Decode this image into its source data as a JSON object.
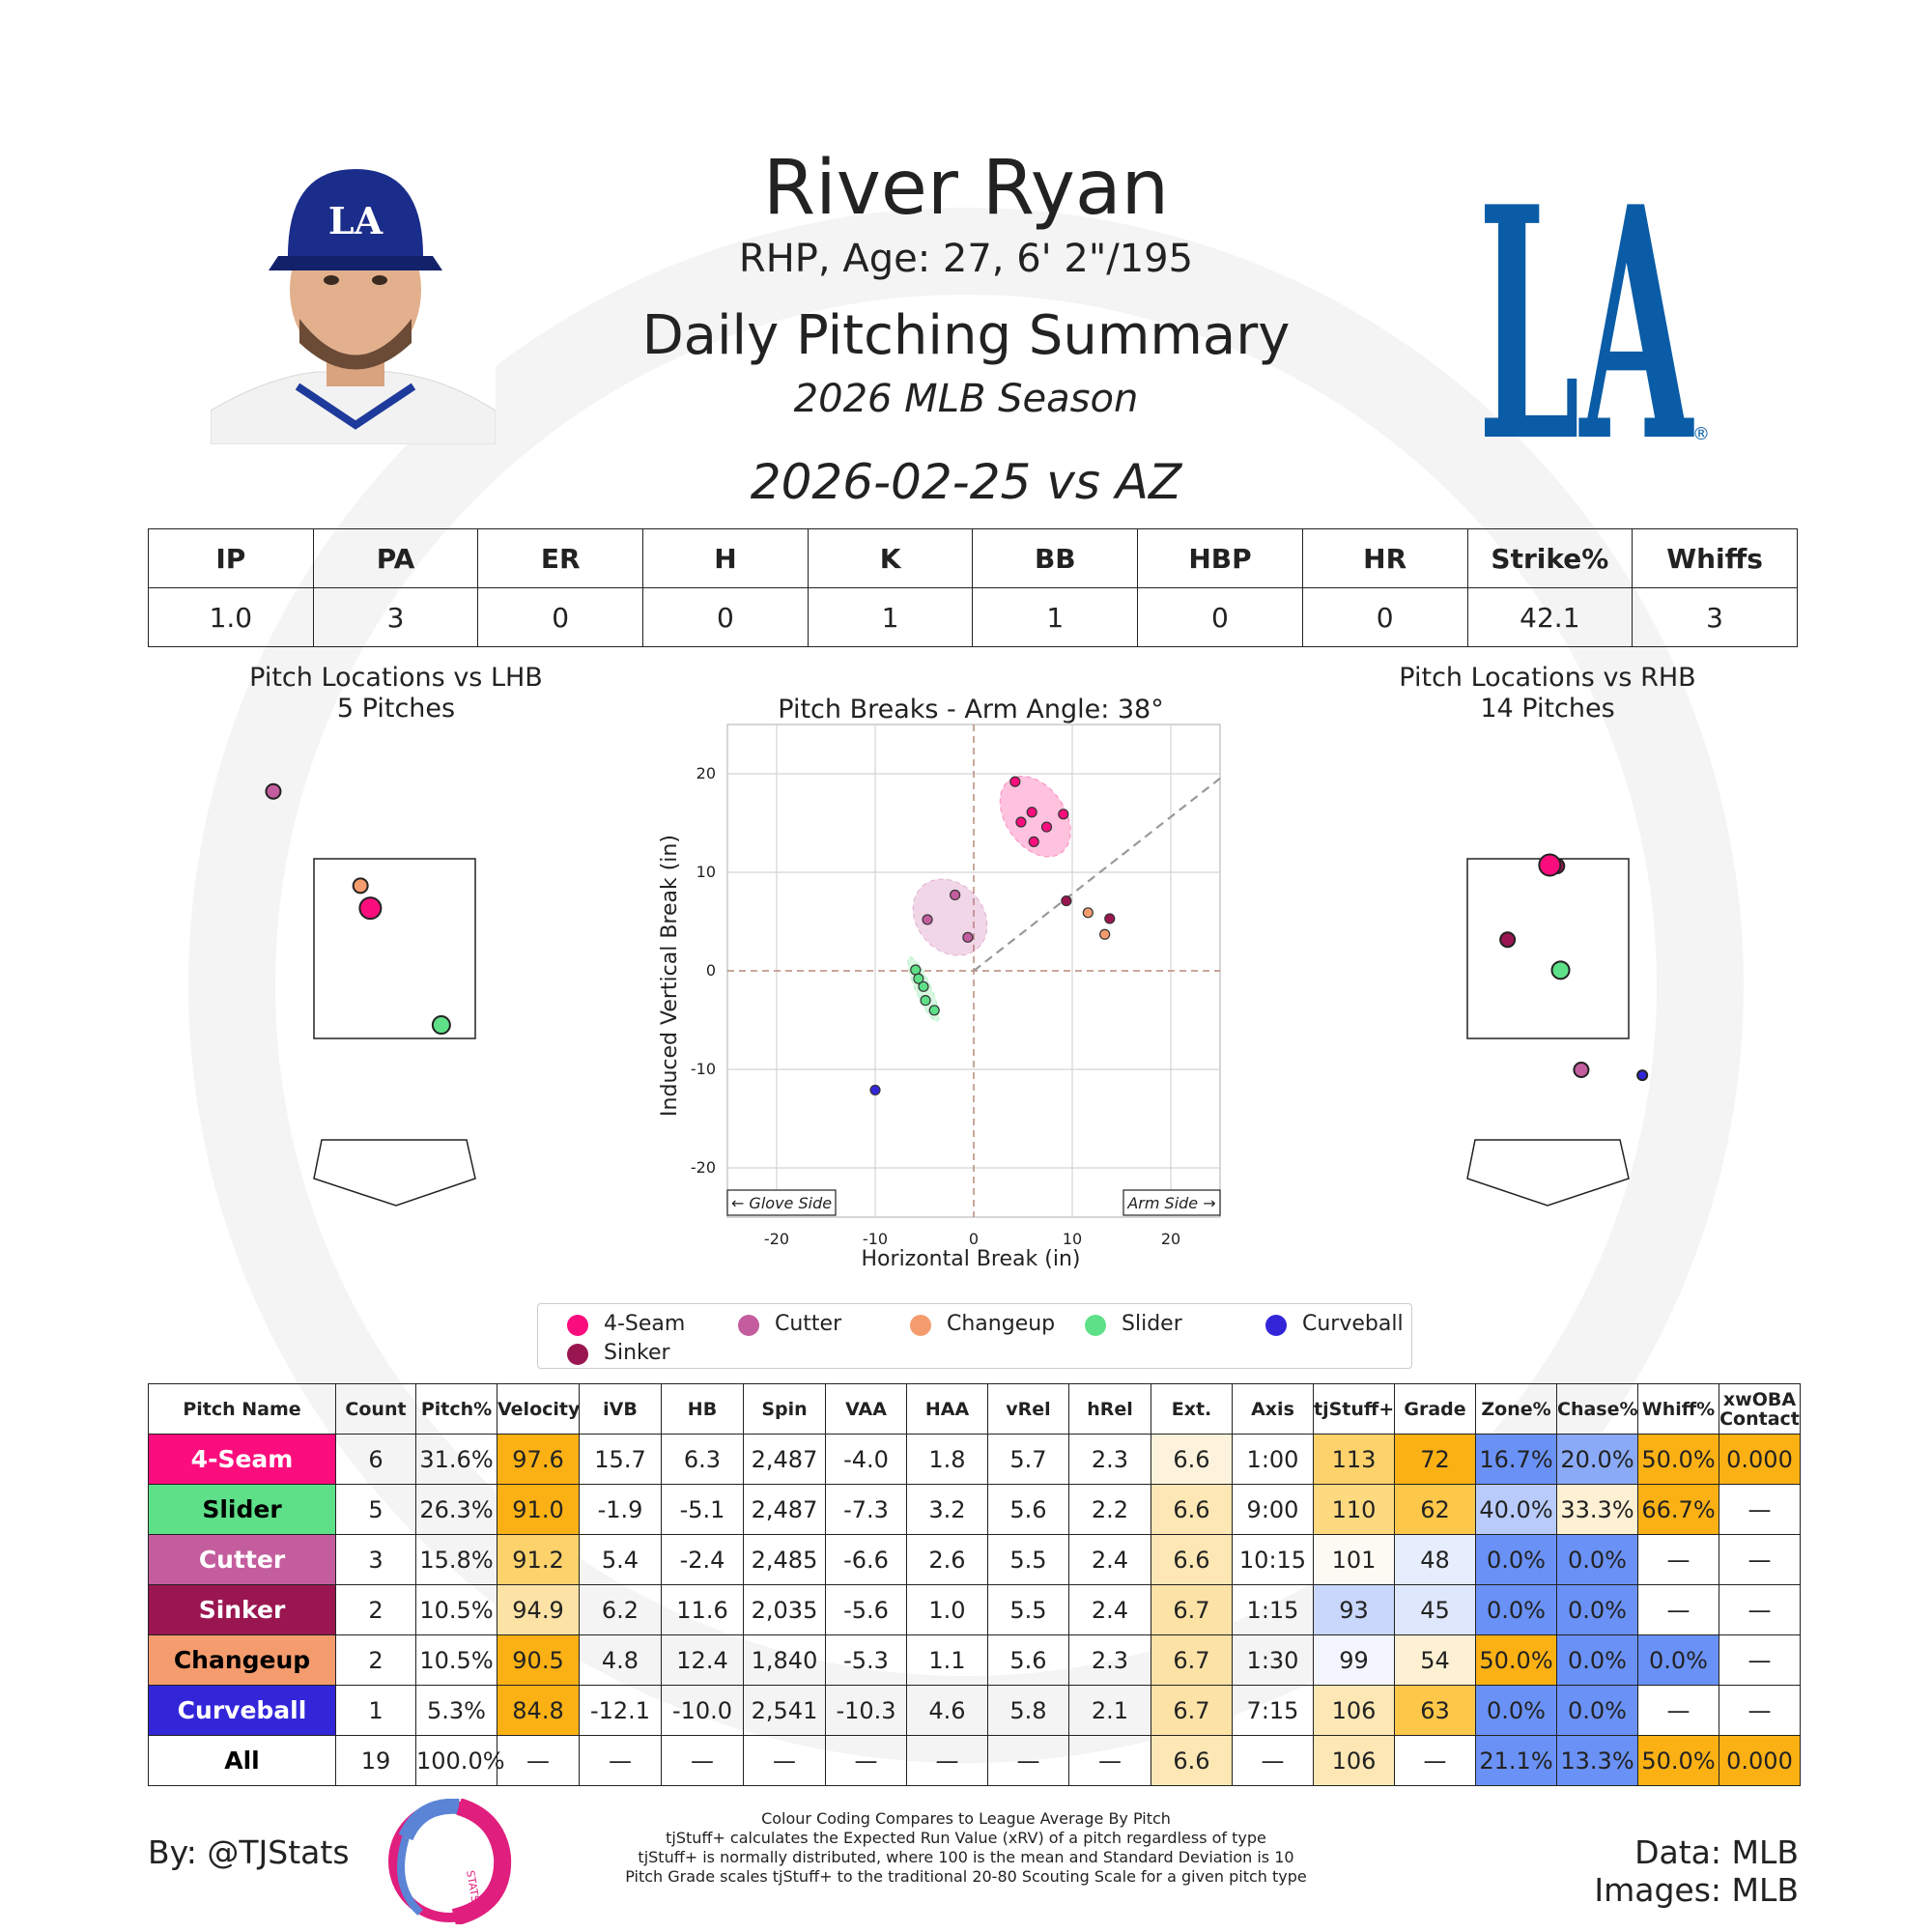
{
  "header": {
    "player_name": "River Ryan",
    "player_info": "RHP, Age: 27, 6' 2\"/195",
    "title": "Daily Pitching Summary",
    "season": "2026 MLB Season",
    "game_line": "2026-02-25 vs AZ",
    "team_logo_text": "LA"
  },
  "line_stats": {
    "headers": [
      "IP",
      "PA",
      "ER",
      "H",
      "K",
      "BB",
      "HBP",
      "HR",
      "Strike%",
      "Whiffs"
    ],
    "values": [
      "1.0",
      "3",
      "0",
      "0",
      "1",
      "1",
      "0",
      "0",
      "42.1",
      "3"
    ]
  },
  "colors": {
    "4-Seam": "#fc0d7d",
    "Cutter": "#c45d9e",
    "Changeup": "#f59c6e",
    "Slider": "#5ee089",
    "Curveball": "#3326d9",
    "Sinker": "#9a1650",
    "grade_high": "#fbb114",
    "grade_low": "#6a91f5"
  },
  "lhb_panel": {
    "title": "Pitch Locations vs LHB",
    "subtitle": "5 Pitches",
    "pitches": [
      {
        "type": "Cutter",
        "x": -1.35,
        "z": 4.25
      },
      {
        "type": "Changeup",
        "x": -0.38,
        "z": 3.2
      },
      {
        "type": "4-Seam",
        "x": -0.27,
        "z": 2.95
      },
      {
        "type": "Slider",
        "x": 0.52,
        "z": 1.65
      }
    ]
  },
  "rhb_panel": {
    "title": "Pitch Locations vs RHB",
    "subtitle": "14 Pitches",
    "pitches": [
      {
        "type": "Sinker",
        "x": 0.1,
        "z": 3.42
      },
      {
        "type": "4-Seam",
        "x": 0.02,
        "z": 3.43
      },
      {
        "type": "Sinker",
        "x": -0.45,
        "z": 2.6
      },
      {
        "type": "Slider",
        "x": 0.14,
        "z": 2.26
      },
      {
        "type": "Cutter",
        "x": 0.37,
        "z": 1.15
      },
      {
        "type": "Curveball",
        "x": 1.05,
        "z": 1.09
      }
    ]
  },
  "chart_data": {
    "type": "scatter",
    "title": "Pitch Breaks - Arm Angle: 38°",
    "xlabel": "Horizontal Break (in)",
    "ylabel": "Induced Vertical Break (in)",
    "xlim": [
      -25,
      25
    ],
    "ylim": [
      -25,
      25
    ],
    "xticks": [
      "-20",
      "-10",
      "0",
      "10",
      "20"
    ],
    "yticks": [
      "20",
      "10",
      "0",
      "-10",
      "-20"
    ],
    "grid": true,
    "annotations": {
      "left": "← Glove Side",
      "right": "Arm Side →"
    },
    "arm_angle_deg": 38,
    "series": [
      {
        "name": "4-Seam",
        "points": [
          [
            4.2,
            19.2
          ],
          [
            4.8,
            15.1
          ],
          [
            5.9,
            16.1
          ],
          [
            7.4,
            14.6
          ],
          [
            9.1,
            15.9
          ],
          [
            6.1,
            13.1
          ]
        ]
      },
      {
        "name": "Cutter",
        "points": [
          [
            -1.9,
            7.7
          ],
          [
            -4.7,
            5.2
          ],
          [
            -0.6,
            3.4
          ]
        ]
      },
      {
        "name": "Changeup",
        "points": [
          [
            11.6,
            5.9
          ],
          [
            13.3,
            3.7
          ]
        ]
      },
      {
        "name": "Slider",
        "points": [
          [
            -5.9,
            0.1
          ],
          [
            -5.6,
            -0.8
          ],
          [
            -5.1,
            -1.6
          ],
          [
            -4.9,
            -3.0
          ],
          [
            -4.0,
            -4.0
          ]
        ]
      },
      {
        "name": "Curveball",
        "points": [
          [
            -10.0,
            -12.1
          ]
        ]
      },
      {
        "name": "Sinker",
        "points": [
          [
            9.4,
            7.1
          ],
          [
            13.8,
            5.3
          ]
        ]
      }
    ]
  },
  "legend": [
    "4-Seam",
    "Cutter",
    "Changeup",
    "Slider",
    "Curveball",
    "Sinker"
  ],
  "pitch_table": {
    "headers": [
      "Pitch Name",
      "Count",
      "Pitch%",
      "Velocity",
      "iVB",
      "HB",
      "Spin",
      "VAA",
      "HAA",
      "vRel",
      "hRel",
      "Ext.",
      "Axis",
      "tjStuff+",
      "Grade",
      "Zone%",
      "Chase%",
      "Whiff%",
      "xwOBA Contact"
    ],
    "rows": [
      {
        "name": "4-Seam",
        "cells": [
          "6",
          "31.6%",
          "97.6",
          "15.7",
          "6.3",
          "2,487",
          "-4.0",
          "1.8",
          "5.7",
          "2.3",
          "6.6",
          "1:00",
          "113",
          "72",
          "16.7%",
          "20.0%",
          "50.0%",
          "0.000"
        ]
      },
      {
        "name": "Slider",
        "cells": [
          "5",
          "26.3%",
          "91.0",
          "-1.9",
          "-5.1",
          "2,487",
          "-7.3",
          "3.2",
          "5.6",
          "2.2",
          "6.6",
          "9:00",
          "110",
          "62",
          "40.0%",
          "33.3%",
          "66.7%",
          "—"
        ]
      },
      {
        "name": "Cutter",
        "cells": [
          "3",
          "15.8%",
          "91.2",
          "5.4",
          "-2.4",
          "2,485",
          "-6.6",
          "2.6",
          "5.5",
          "2.4",
          "6.6",
          "10:15",
          "101",
          "48",
          "0.0%",
          "0.0%",
          "—",
          "—"
        ]
      },
      {
        "name": "Sinker",
        "cells": [
          "2",
          "10.5%",
          "94.9",
          "6.2",
          "11.6",
          "2,035",
          "-5.6",
          "1.0",
          "5.5",
          "2.4",
          "6.7",
          "1:15",
          "93",
          "45",
          "0.0%",
          "0.0%",
          "—",
          "—"
        ]
      },
      {
        "name": "Changeup",
        "cells": [
          "2",
          "10.5%",
          "90.5",
          "4.8",
          "12.4",
          "1,840",
          "-5.3",
          "1.1",
          "5.6",
          "2.3",
          "6.7",
          "1:30",
          "99",
          "54",
          "50.0%",
          "0.0%",
          "0.0%",
          "—"
        ]
      },
      {
        "name": "Curveball",
        "cells": [
          "1",
          "5.3%",
          "84.8",
          "-12.1",
          "-10.0",
          "2,541",
          "-10.3",
          "4.6",
          "5.8",
          "2.1",
          "6.7",
          "7:15",
          "106",
          "63",
          "0.0%",
          "0.0%",
          "—",
          "—"
        ]
      },
      {
        "name": "All",
        "cells": [
          "19",
          "100.0%",
          "—",
          "—",
          "—",
          "—",
          "—",
          "—",
          "—",
          "—",
          "6.6",
          "—",
          "106",
          "—",
          "21.1%",
          "13.3%",
          "50.0%",
          "0.000"
        ]
      }
    ],
    "cell_colors": [
      {
        "row": 0,
        "col": 3,
        "color": "#fbb114"
      },
      {
        "row": 0,
        "col": 11,
        "color": "#fdf3dc"
      },
      {
        "row": 0,
        "col": 13,
        "color": "#fdd26b"
      },
      {
        "row": 0,
        "col": 14,
        "color": "#fbb114"
      },
      {
        "row": 0,
        "col": 15,
        "color": "#6a91f5"
      },
      {
        "row": 0,
        "col": 16,
        "color": "#8aa9f7"
      },
      {
        "row": 0,
        "col": 17,
        "color": "#fbb114"
      },
      {
        "row": 0,
        "col": 18,
        "color": "#fbb114"
      },
      {
        "row": 1,
        "col": 3,
        "color": "#fbb114"
      },
      {
        "row": 1,
        "col": 11,
        "color": "#fde7b4"
      },
      {
        "row": 1,
        "col": 13,
        "color": "#fdd980"
      },
      {
        "row": 1,
        "col": 14,
        "color": "#fdc74a"
      },
      {
        "row": 1,
        "col": 15,
        "color": "#b8cbfa"
      },
      {
        "row": 1,
        "col": 16,
        "color": "#fdf0d3"
      },
      {
        "row": 1,
        "col": 17,
        "color": "#fbb114"
      },
      {
        "row": 2,
        "col": 3,
        "color": "#fdd26b"
      },
      {
        "row": 2,
        "col": 11,
        "color": "#fde7b4"
      },
      {
        "row": 2,
        "col": 13,
        "color": "#fdfaf3"
      },
      {
        "row": 2,
        "col": 14,
        "color": "#e6edfd"
      },
      {
        "row": 2,
        "col": 15,
        "color": "#6a91f5"
      },
      {
        "row": 2,
        "col": 16,
        "color": "#6a91f5"
      },
      {
        "row": 3,
        "col": 3,
        "color": "#fde2a6"
      },
      {
        "row": 3,
        "col": 11,
        "color": "#fde2a6"
      },
      {
        "row": 3,
        "col": 13,
        "color": "#c8d7fb"
      },
      {
        "row": 3,
        "col": 14,
        "color": "#dfe7fc"
      },
      {
        "row": 3,
        "col": 15,
        "color": "#6a91f5"
      },
      {
        "row": 3,
        "col": 16,
        "color": "#6a91f5"
      },
      {
        "row": 4,
        "col": 3,
        "color": "#fbb114"
      },
      {
        "row": 4,
        "col": 11,
        "color": "#fde2a6"
      },
      {
        "row": 4,
        "col": 13,
        "color": "#f3f6fe"
      },
      {
        "row": 4,
        "col": 14,
        "color": "#fdf0d3"
      },
      {
        "row": 4,
        "col": 15,
        "color": "#fbb114"
      },
      {
        "row": 4,
        "col": 16,
        "color": "#6a91f5"
      },
      {
        "row": 4,
        "col": 17,
        "color": "#6a91f5"
      },
      {
        "row": 5,
        "col": 3,
        "color": "#fbb114"
      },
      {
        "row": 5,
        "col": 11,
        "color": "#fde2a6"
      },
      {
        "row": 5,
        "col": 13,
        "color": "#fde7b4"
      },
      {
        "row": 5,
        "col": 14,
        "color": "#fdc74a"
      },
      {
        "row": 5,
        "col": 15,
        "color": "#6a91f5"
      },
      {
        "row": 5,
        "col": 16,
        "color": "#6a91f5"
      },
      {
        "row": 6,
        "col": 11,
        "color": "#fde7b4"
      },
      {
        "row": 6,
        "col": 13,
        "color": "#fde7b4"
      },
      {
        "row": 6,
        "col": 15,
        "color": "#6a91f5"
      },
      {
        "row": 6,
        "col": 16,
        "color": "#6a91f5"
      },
      {
        "row": 6,
        "col": 17,
        "color": "#fbb114"
      },
      {
        "row": 6,
        "col": 18,
        "color": "#fbb114"
      }
    ]
  },
  "footer": {
    "by": "By: @TJStats",
    "data_source": "Data: MLB",
    "images_source": "Images: MLB",
    "notes": [
      "Colour Coding Compares to League Average By Pitch",
      "tjStuff+ calculates the Expected Run Value (xRV) of a pitch regardless of type",
      "tjStuff+ is normally distributed, where 100 is the mean and Standard Deviation is 10",
      "Pitch Grade scales tjStuff+ to the traditional 20-80 Scouting Scale for a given pitch type"
    ],
    "logo_text": "STATS"
  }
}
